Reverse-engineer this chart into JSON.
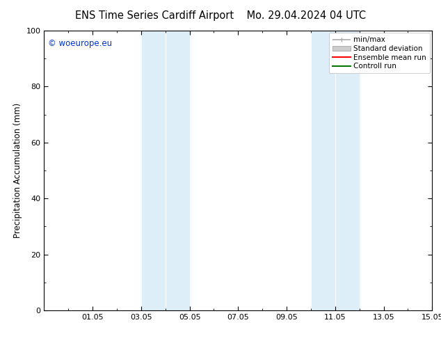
{
  "title_left": "ENS Time Series Cardiff Airport",
  "title_right": "Mo. 29.04.2024 04 UTC",
  "ylabel": "Precipitation Accumulation (mm)",
  "ylim": [
    0,
    100
  ],
  "yticks": [
    0,
    20,
    40,
    60,
    80,
    100
  ],
  "xlim": [
    0.0,
    16.0
  ],
  "xtick_labels": [
    "01.05",
    "03.05",
    "05.05",
    "07.05",
    "09.05",
    "11.05",
    "13.05",
    "15.05"
  ],
  "xtick_positions": [
    2.0,
    4.0,
    6.0,
    8.0,
    10.0,
    12.0,
    14.0,
    16.0
  ],
  "shaded_regions": [
    {
      "x_start": 4.0,
      "x_end": 5.0,
      "color": "#ddeef8"
    },
    {
      "x_start": 5.0,
      "x_end": 6.0,
      "color": "#ddeef8"
    },
    {
      "x_start": 11.0,
      "x_end": 12.0,
      "color": "#ddeef8"
    },
    {
      "x_start": 12.0,
      "x_end": 13.0,
      "color": "#ddeef8"
    }
  ],
  "shaded_dividers": [
    4.0,
    5.0,
    6.0,
    11.0,
    12.0,
    13.0
  ],
  "watermark_text": "© woeurope.eu",
  "watermark_color": "#0033cc",
  "background_color": "#ffffff",
  "legend_entries": [
    {
      "label": "min/max",
      "color": "#aaaaaa",
      "lw": 1.2
    },
    {
      "label": "Standard deviation",
      "color": "#cccccc",
      "lw": 5
    },
    {
      "label": "Ensemble mean run",
      "color": "#ff0000",
      "lw": 1.5
    },
    {
      "label": "Controll run",
      "color": "#007700",
      "lw": 1.5
    }
  ],
  "title_fontsize": 10.5,
  "axis_label_fontsize": 8.5,
  "tick_fontsize": 8,
  "legend_fontsize": 7.5,
  "watermark_fontsize": 8.5
}
